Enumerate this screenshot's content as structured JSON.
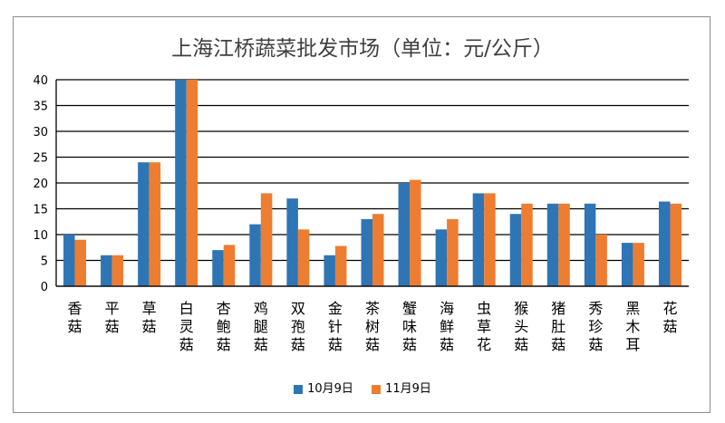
{
  "chart_data": {
    "type": "bar",
    "title": "上海江桥蔬菜批发市场（单位：元/公斤）",
    "xlabel": "",
    "ylabel": "",
    "ylim": [
      0,
      40
    ],
    "yticks": [
      0,
      5,
      10,
      15,
      20,
      25,
      30,
      35,
      40
    ],
    "grid": true,
    "legend": "bottom",
    "categories": [
      "香菇",
      "平菇",
      "草菇",
      "白灵菇",
      "杏鲍菇",
      "鸡腿菇",
      "双孢菇",
      "金针菇",
      "茶树菇",
      "蟹味菇",
      "海鲜菇",
      "虫草花",
      "猴头菇",
      "猪肚菇",
      "秀珍菇",
      "黑木耳",
      "花菇"
    ],
    "series": [
      {
        "name": "10月9日",
        "color": "#2e75b6",
        "values": [
          10,
          6,
          24,
          40,
          7,
          12,
          17,
          6,
          13,
          20,
          11,
          18,
          14,
          16,
          16,
          8.4,
          16.4
        ]
      },
      {
        "name": "11月9日",
        "color": "#ed7d31",
        "values": [
          9,
          6,
          24,
          40,
          8,
          18,
          11,
          7.8,
          14,
          20.6,
          13,
          18,
          16,
          16,
          10,
          8.4,
          16
        ]
      }
    ]
  }
}
